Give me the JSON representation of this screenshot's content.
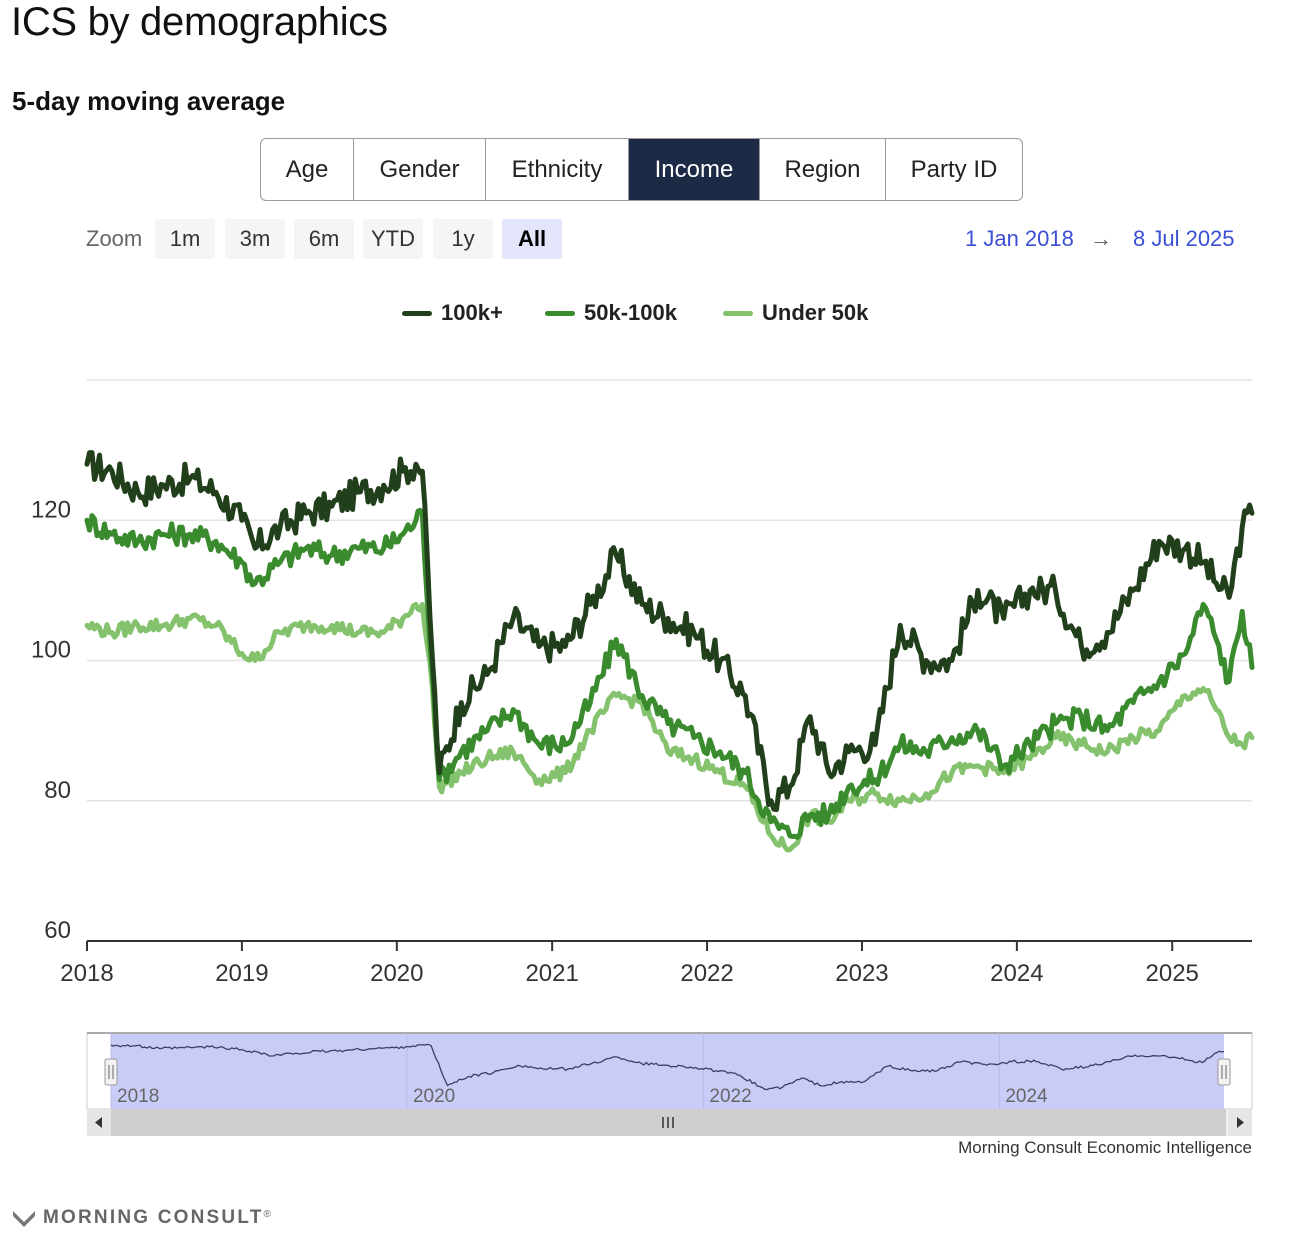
{
  "title": "ICS by demographics",
  "subtitle": "5-day moving average",
  "tabs": [
    {
      "label": "Age",
      "active": false
    },
    {
      "label": "Gender",
      "active": false
    },
    {
      "label": "Ethnicity",
      "active": false
    },
    {
      "label": "Income",
      "active": true
    },
    {
      "label": "Region",
      "active": false
    },
    {
      "label": "Party ID",
      "active": false
    }
  ],
  "zoom": {
    "label": "Zoom",
    "buttons": [
      "1m",
      "3m",
      "6m",
      "YTD",
      "1y",
      "All"
    ],
    "active": "All",
    "from": "1 Jan 2018",
    "arrow": "→",
    "to": "8 Jul 2025"
  },
  "credit": "Morning Consult Economic Intelligence",
  "logo_text": "MORNING CONSULT",
  "logo_mark": "®",
  "colors": {
    "series_100k": "#223f1c",
    "series_50_100k": "#3a8a2e",
    "series_under50k": "#84c26d",
    "navigator": "#c9ccf7",
    "active_tab": "#1d2a45"
  },
  "icons": [
    "scroll-left-arrow-icon",
    "scroll-right-arrow-icon",
    "scroll-grip-icon",
    "navigator-handle-icon",
    "morning-consult-logo-icon"
  ],
  "chart_data": {
    "type": "line",
    "x_type": "date",
    "xlim": [
      "2018-01-01",
      "2025-07-08"
    ],
    "ylim": [
      60,
      140
    ],
    "yticks": [
      60,
      80,
      100,
      120
    ],
    "xticks": [
      "2018",
      "2019",
      "2020",
      "2021",
      "2022",
      "2023",
      "2024",
      "2025"
    ],
    "grid": true,
    "legend_position": "top-center",
    "navigator": {
      "labels": [
        "2018",
        "2020",
        "2022",
        "2024"
      ],
      "series": "100k+"
    },
    "series": [
      {
        "name": "100k+",
        "color": "#223f1c",
        "x": [
          "2018-01-01",
          "2018-03-01",
          "2018-05-01",
          "2018-07-01",
          "2018-09-01",
          "2018-11-01",
          "2019-01-01",
          "2019-02-01",
          "2019-04-01",
          "2019-06-01",
          "2019-08-01",
          "2019-10-01",
          "2019-12-01",
          "2020-01-15",
          "2020-02-15",
          "2020-03-01",
          "2020-03-25",
          "2020-04-10",
          "2020-06-01",
          "2020-08-01",
          "2020-10-01",
          "2020-12-01",
          "2021-02-01",
          "2021-04-01",
          "2021-06-01",
          "2021-08-01",
          "2021-10-01",
          "2021-12-01",
          "2022-02-01",
          "2022-04-01",
          "2022-06-01",
          "2022-07-15",
          "2022-09-01",
          "2022-10-15",
          "2022-12-01",
          "2023-02-01",
          "2023-04-01",
          "2023-06-01",
          "2023-08-01",
          "2023-10-01",
          "2023-12-01",
          "2024-02-01",
          "2024-04-01",
          "2024-06-01",
          "2024-08-01",
          "2024-10-01",
          "2024-12-01",
          "2025-02-01",
          "2025-03-15",
          "2025-04-15",
          "2025-05-15",
          "2025-06-15",
          "2025-07-08"
        ],
        "values": [
          128,
          127,
          124,
          125,
          126,
          124,
          120,
          116,
          119,
          121,
          122,
          124,
          125,
          127,
          128,
          127,
          100,
          84,
          94,
          98,
          106,
          102,
          102,
          108,
          115,
          108,
          106,
          104,
          100,
          95,
          80,
          82,
          92,
          84,
          87,
          88,
          105,
          100,
          100,
          110,
          106,
          110,
          110,
          102,
          104,
          110,
          117,
          116,
          114,
          111,
          109,
          119,
          121
        ]
      },
      {
        "name": "50k-100k",
        "color": "#3a8a2e",
        "x": [
          "2018-01-01",
          "2018-03-01",
          "2018-05-01",
          "2018-07-01",
          "2018-09-01",
          "2018-11-01",
          "2019-01-01",
          "2019-02-01",
          "2019-04-01",
          "2019-06-01",
          "2019-08-01",
          "2019-10-01",
          "2019-12-01",
          "2020-01-15",
          "2020-02-15",
          "2020-03-01",
          "2020-03-25",
          "2020-04-10",
          "2020-06-01",
          "2020-08-01",
          "2020-10-01",
          "2020-12-01",
          "2021-02-01",
          "2021-04-01",
          "2021-06-01",
          "2021-08-01",
          "2021-10-01",
          "2021-12-01",
          "2022-02-01",
          "2022-04-01",
          "2022-06-01",
          "2022-07-15",
          "2022-09-01",
          "2022-10-15",
          "2022-12-01",
          "2023-02-01",
          "2023-04-01",
          "2023-06-01",
          "2023-08-01",
          "2023-10-01",
          "2023-12-01",
          "2024-02-01",
          "2024-04-01",
          "2024-06-01",
          "2024-08-01",
          "2024-10-01",
          "2024-12-01",
          "2025-02-01",
          "2025-03-15",
          "2025-04-15",
          "2025-05-15",
          "2025-06-15",
          "2025-07-08"
        ],
        "values": [
          120,
          118,
          117,
          118,
          118,
          117,
          114,
          111,
          114,
          116,
          115,
          116,
          116,
          118,
          120,
          121,
          98,
          83,
          87,
          90,
          93,
          88,
          88,
          94,
          103,
          95,
          91,
          89,
          87,
          84,
          77,
          75,
          78,
          78,
          82,
          83,
          88,
          87,
          89,
          90,
          85,
          88,
          91,
          92,
          90,
          94,
          97,
          101,
          108,
          103,
          97,
          107,
          99
        ]
      },
      {
        "name": "Under 50k",
        "color": "#84c26d",
        "x": [
          "2018-01-01",
          "2018-03-01",
          "2018-05-01",
          "2018-07-01",
          "2018-09-01",
          "2018-11-01",
          "2019-01-01",
          "2019-02-01",
          "2019-04-01",
          "2019-06-01",
          "2019-08-01",
          "2019-10-01",
          "2019-12-01",
          "2020-01-15",
          "2020-02-15",
          "2020-03-01",
          "2020-03-25",
          "2020-04-10",
          "2020-06-01",
          "2020-08-01",
          "2020-10-01",
          "2020-12-01",
          "2021-02-01",
          "2021-04-01",
          "2021-06-01",
          "2021-08-01",
          "2021-10-01",
          "2021-12-01",
          "2022-02-01",
          "2022-04-01",
          "2022-06-01",
          "2022-07-15",
          "2022-09-01",
          "2022-10-15",
          "2022-12-01",
          "2023-02-01",
          "2023-04-01",
          "2023-06-01",
          "2023-08-01",
          "2023-10-01",
          "2023-12-01",
          "2024-02-01",
          "2024-04-01",
          "2024-06-01",
          "2024-08-01",
          "2024-10-01",
          "2024-12-01",
          "2025-02-01",
          "2025-03-15",
          "2025-04-15",
          "2025-05-15",
          "2025-06-15",
          "2025-07-08"
        ],
        "values": [
          105,
          104,
          105,
          105,
          106,
          105,
          101,
          100,
          104,
          105,
          105,
          104,
          104,
          106,
          108,
          108,
          96,
          82,
          84,
          86,
          87,
          83,
          84,
          90,
          95,
          94,
          87,
          86,
          84,
          82,
          75,
          73,
          78,
          77,
          80,
          81,
          80,
          81,
          84,
          85,
          84,
          86,
          89,
          88,
          87,
          89,
          90,
          95,
          96,
          93,
          89,
          88,
          89
        ]
      }
    ]
  }
}
